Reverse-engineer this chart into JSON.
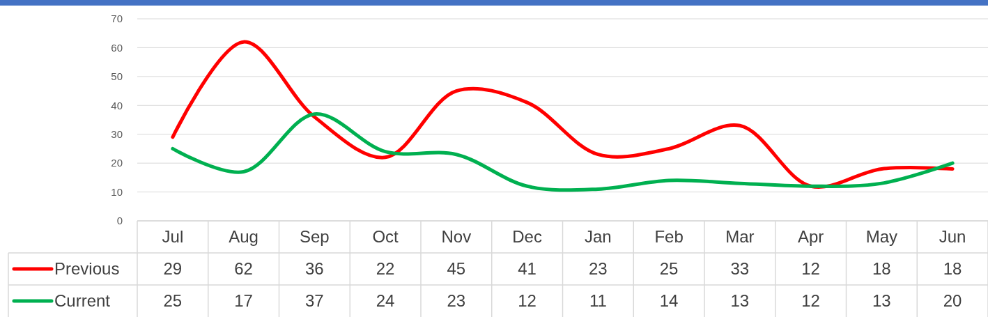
{
  "chart_data": {
    "type": "line",
    "categories": [
      "Jul",
      "Aug",
      "Sep",
      "Oct",
      "Nov",
      "Dec",
      "Jan",
      "Feb",
      "Mar",
      "Apr",
      "May",
      "Jun"
    ],
    "series": [
      {
        "name": "Previous",
        "color": "#ff0000",
        "values": [
          29,
          62,
          36,
          22,
          45,
          41,
          23,
          25,
          33,
          12,
          18,
          18
        ]
      },
      {
        "name": "Current",
        "color": "#00b050",
        "values": [
          25,
          17,
          37,
          24,
          23,
          12,
          11,
          14,
          13,
          12,
          13,
          20
        ]
      }
    ],
    "ylim": [
      0,
      70
    ],
    "yticks": [
      0,
      10,
      20,
      30,
      40,
      50,
      60,
      70
    ],
    "grid": "y",
    "legend": "bottom",
    "data_labels": true,
    "marker": "none",
    "line_style": "solid"
  }
}
